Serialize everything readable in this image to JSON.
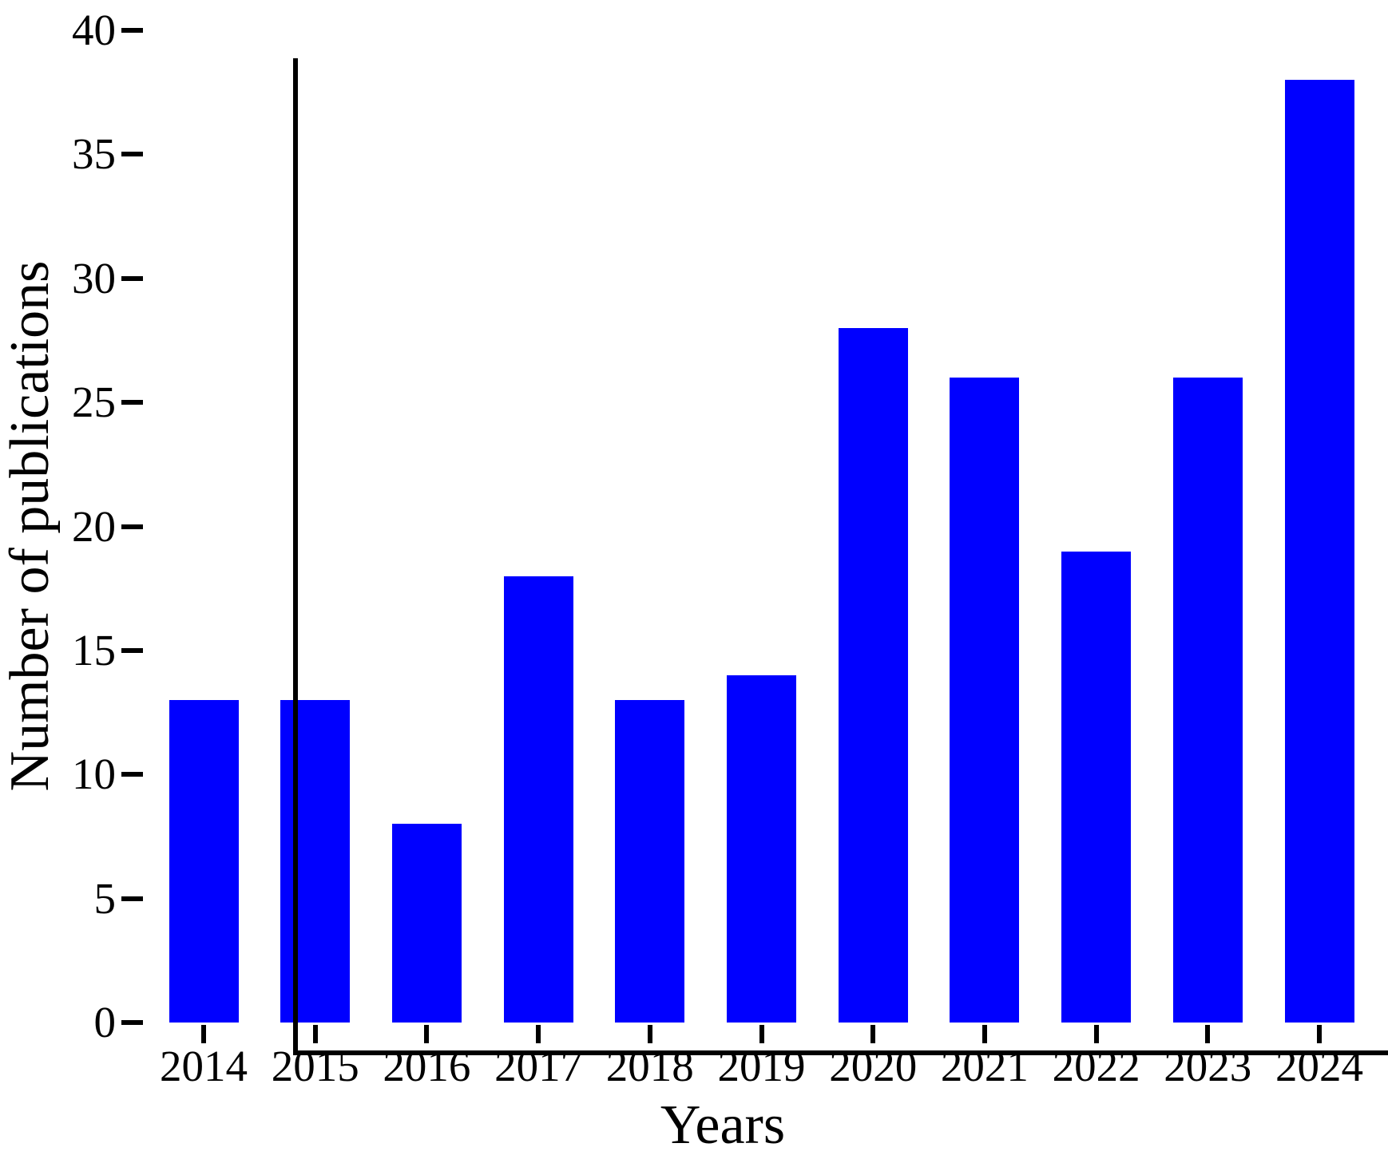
{
  "figure": {
    "background": "#ffffff",
    "text_color": "#000000"
  },
  "chart_data": {
    "type": "bar",
    "title": "",
    "xlabel": "Years",
    "ylabel": "Number of publications",
    "categories": [
      "2014",
      "2015",
      "2016",
      "2017",
      "2018",
      "2019",
      "2020",
      "2021",
      "2022",
      "2023",
      "2024"
    ],
    "values": [
      13,
      13,
      8,
      18,
      13,
      14,
      28,
      26,
      19,
      26,
      38
    ],
    "ylim": [
      0,
      40
    ],
    "yticks": [
      0,
      5,
      10,
      15,
      20,
      25,
      30,
      35,
      40
    ],
    "bar_color": "#0000ff",
    "axis_color": "#000000",
    "grid": false,
    "legend_position": "none"
  }
}
